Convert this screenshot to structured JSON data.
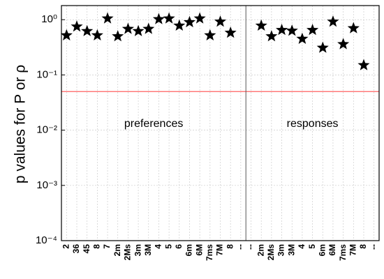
{
  "chart_data": {
    "type": "scatter",
    "y_label": "p values for P or ρ",
    "categories": [
      "2",
      "36",
      "45",
      "8",
      "7",
      "2m",
      "2Ms",
      "3m",
      "3M",
      "4",
      "5",
      "6",
      "6m",
      "6M",
      "7ms",
      "7M",
      "8",
      "--",
      "--",
      "2m",
      "2Ms",
      "3m",
      "3M",
      "4",
      "5",
      "6m",
      "6M",
      "7ms",
      "7M",
      "8",
      "--"
    ],
    "series": [
      {
        "color": "#000000",
        "values": [
          0.52,
          0.75,
          0.62,
          0.52,
          1.05,
          0.5,
          0.68,
          0.62,
          0.68,
          1.02,
          1.05,
          0.78,
          0.9,
          1.05,
          0.52,
          0.92,
          0.58,
          null,
          null,
          0.78,
          0.5,
          0.65,
          0.63,
          0.45,
          0.65,
          0.31,
          0.92,
          0.36,
          0.7,
          0.15,
          null
        ]
      }
    ],
    "ylim": [
      0.0001,
      1.8
    ],
    "log_y": true,
    "yticks": [
      {
        "value": 0.0001,
        "label": "10⁻⁴"
      },
      {
        "value": 0.001,
        "label": "10⁻³"
      },
      {
        "value": 0.01,
        "label": "10⁻²"
      },
      {
        "value": 0.1,
        "label": "10⁻¹"
      },
      {
        "value": 1,
        "label": "10⁰"
      }
    ],
    "grid": true,
    "reference_line": {
      "value": 0.05,
      "color": "#ff6060"
    },
    "annotations": [
      "preferences",
      "responses"
    ]
  }
}
